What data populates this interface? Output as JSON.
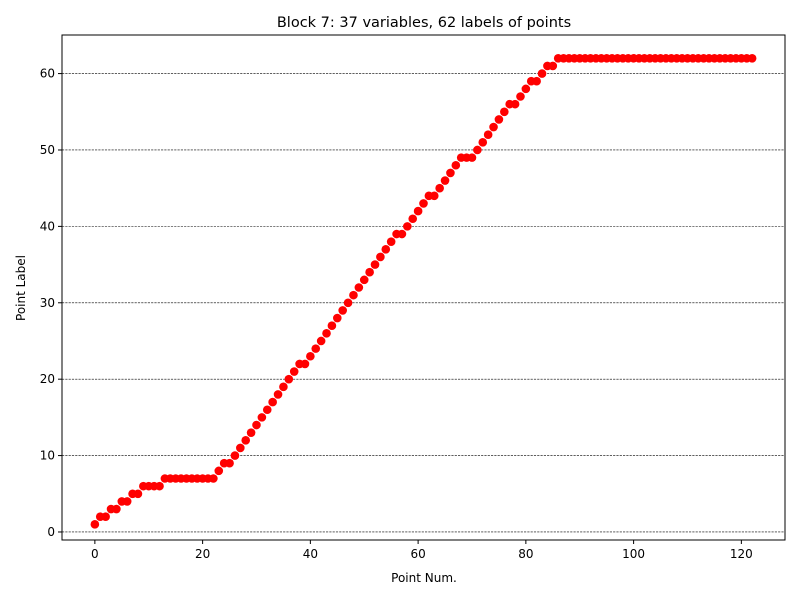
{
  "chart_data": {
    "type": "scatter",
    "title": "Block 7: 37 variables, 62 labels of points",
    "xlabel": "Point Num.",
    "ylabel": "Point Label",
    "xlim": [
      -6.1,
      128.1
    ],
    "ylim": [
      -1.05,
      65.05
    ],
    "xticks": [
      0,
      20,
      40,
      60,
      80,
      100,
      120
    ],
    "yticks": [
      0,
      10,
      20,
      30,
      40,
      50,
      60
    ],
    "grid": "horizontal dashed",
    "marker_color": "#ff0000",
    "x": [
      0,
      1,
      2,
      3,
      4,
      5,
      6,
      7,
      8,
      9,
      10,
      11,
      12,
      13,
      14,
      15,
      16,
      17,
      18,
      19,
      20,
      21,
      22,
      23,
      24,
      25,
      26,
      27,
      28,
      29,
      30,
      31,
      32,
      33,
      34,
      35,
      36,
      37,
      38,
      39,
      40,
      41,
      42,
      43,
      44,
      45,
      46,
      47,
      48,
      49,
      50,
      51,
      52,
      53,
      54,
      55,
      56,
      57,
      58,
      59,
      60,
      61,
      62,
      63,
      64,
      65,
      66,
      67,
      68,
      69,
      70,
      71,
      72,
      73,
      74,
      75,
      76,
      77,
      78,
      79,
      80,
      81,
      82,
      83,
      84,
      85,
      86,
      87,
      88,
      89,
      90,
      91,
      92,
      93,
      94,
      95,
      96,
      97,
      98,
      99,
      100,
      101,
      102,
      103,
      104,
      105,
      106,
      107,
      108,
      109,
      110,
      111,
      112,
      113,
      114,
      115,
      116,
      117,
      118,
      119,
      120,
      121,
      122
    ],
    "y": [
      1,
      2,
      2,
      3,
      3,
      4,
      4,
      5,
      5,
      6,
      6,
      6,
      6,
      7,
      7,
      7,
      7,
      7,
      7,
      7,
      7,
      7,
      7,
      8,
      9,
      9,
      10,
      11,
      12,
      13,
      14,
      15,
      16,
      17,
      18,
      19,
      20,
      21,
      22,
      22,
      23,
      24,
      25,
      26,
      27,
      28,
      29,
      30,
      31,
      32,
      33,
      34,
      35,
      36,
      37,
      38,
      39,
      39,
      40,
      41,
      42,
      43,
      44,
      44,
      45,
      46,
      47,
      48,
      49,
      49,
      49,
      50,
      51,
      52,
      53,
      54,
      55,
      56,
      56,
      57,
      58,
      59,
      59,
      60,
      61,
      61,
      62,
      62,
      62,
      62,
      62,
      62,
      62,
      62,
      62,
      62,
      62,
      62,
      62,
      62,
      62,
      62,
      62,
      62,
      62,
      62,
      62,
      62,
      62,
      62,
      62,
      62,
      62,
      62,
      62,
      62,
      62,
      62,
      62,
      62,
      62,
      62,
      62
    ]
  }
}
